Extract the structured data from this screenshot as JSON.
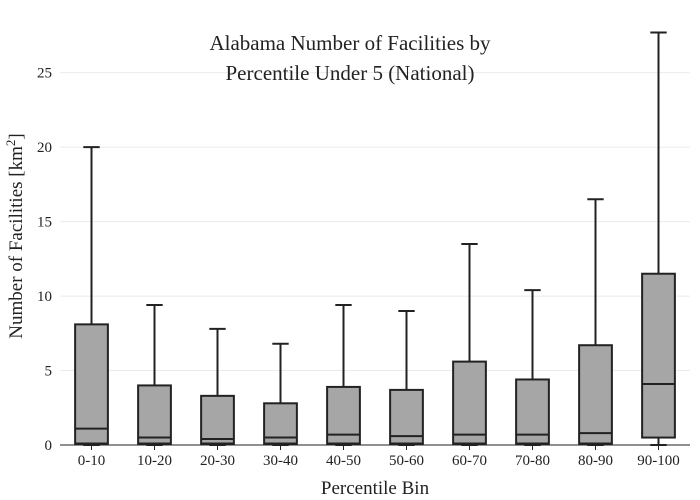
{
  "chart_data": {
    "type": "box",
    "title_lines": [
      "Alabama Number of Facilities by",
      "Percentile Under 5 (National)"
    ],
    "xlabel": "Percentile Bin",
    "ylabel_main": "Number of Facilities  [km",
    "ylabel_sup": "2",
    "ylabel_end": "]",
    "ylim": [
      0,
      28
    ],
    "yticks": [
      0,
      5,
      10,
      15,
      20,
      25
    ],
    "grid": true,
    "box_color": "#a6a6a6",
    "line_color": "#222222",
    "categories": [
      "0-10",
      "10-20",
      "20-30",
      "30-40",
      "40-50",
      "50-60",
      "60-70",
      "70-80",
      "80-90",
      "90-100"
    ],
    "boxes": [
      {
        "min": 0,
        "q1": 0.1,
        "median": 1.1,
        "q3": 8.1,
        "max": 20.0
      },
      {
        "min": 0,
        "q1": 0.1,
        "median": 0.5,
        "q3": 4.0,
        "max": 9.4
      },
      {
        "min": 0,
        "q1": 0.1,
        "median": 0.4,
        "q3": 3.3,
        "max": 7.8
      },
      {
        "min": 0,
        "q1": 0.1,
        "median": 0.5,
        "q3": 2.8,
        "max": 6.8
      },
      {
        "min": 0,
        "q1": 0.1,
        "median": 0.7,
        "q3": 3.9,
        "max": 9.4
      },
      {
        "min": 0,
        "q1": 0.1,
        "median": 0.6,
        "q3": 3.7,
        "max": 9.0
      },
      {
        "min": 0,
        "q1": 0.1,
        "median": 0.7,
        "q3": 5.6,
        "max": 13.5
      },
      {
        "min": 0,
        "q1": 0.1,
        "median": 0.7,
        "q3": 4.4,
        "max": 10.4
      },
      {
        "min": 0,
        "q1": 0.1,
        "median": 0.8,
        "q3": 6.7,
        "max": 16.5
      },
      {
        "min": 0,
        "q1": 0.5,
        "median": 4.1,
        "q3": 11.5,
        "max": 27.7
      }
    ]
  }
}
